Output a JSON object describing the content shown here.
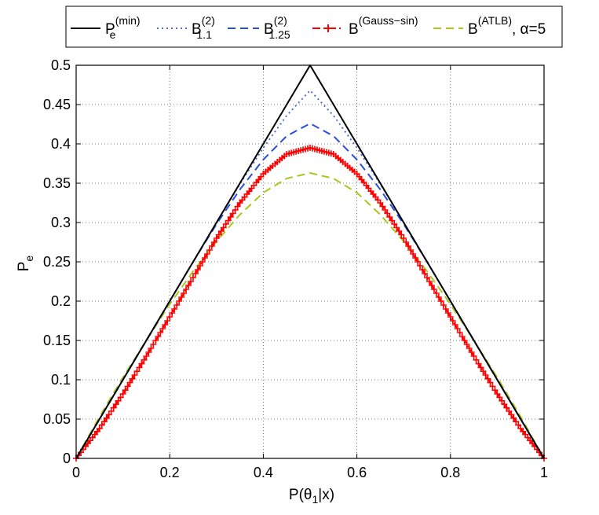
{
  "chart_data": {
    "type": "line",
    "title": "",
    "xlabel": {
      "base": "P(θ",
      "sub": "1",
      "rest": "|x)"
    },
    "ylabel": {
      "base": "P",
      "sub": "e"
    },
    "xlim": [
      0,
      1
    ],
    "ylim": [
      0,
      0.5
    ],
    "grid": true,
    "legend_position": "top-outside",
    "x_ticks": [
      0,
      0.2,
      0.4,
      0.6,
      0.8,
      1
    ],
    "x_tick_labels": [
      "0",
      "0.2",
      "0.4",
      "0.6",
      "0.8",
      "1"
    ],
    "y_ticks": [
      0,
      0.05,
      0.1,
      0.15,
      0.2,
      0.25,
      0.3,
      0.35,
      0.4,
      0.45,
      0.5
    ],
    "y_tick_labels": [
      "0",
      "0.05",
      "0.1",
      "0.15",
      "0.2",
      "0.25",
      "0.3",
      "0.35",
      "0.4",
      "0.45",
      "0.5"
    ],
    "x": [
      0,
      0.05,
      0.1,
      0.15,
      0.2,
      0.25,
      0.3,
      0.35,
      0.4,
      0.45,
      0.5,
      0.55,
      0.6,
      0.65,
      0.7,
      0.75,
      0.8,
      0.85,
      0.9,
      0.95,
      1
    ],
    "series": [
      {
        "name": "P_e^(min)",
        "legend": {
          "base": "P",
          "sub": "e",
          "sup": "(min)",
          "suffix": ""
        },
        "color": "#000000",
        "style": "solid",
        "marker": "none",
        "values": [
          0,
          0.05,
          0.1,
          0.15,
          0.2,
          0.25,
          0.3,
          0.35,
          0.4,
          0.45,
          0.5,
          0.45,
          0.4,
          0.35,
          0.3,
          0.25,
          0.2,
          0.15,
          0.1,
          0.05,
          0
        ]
      },
      {
        "name": "B_1.1^(2)",
        "legend": {
          "base": "B",
          "sub": "1.1",
          "sup": "(2)",
          "suffix": ""
        },
        "color": "#4a6fd8",
        "style": "dotted",
        "marker": "none",
        "values": [
          0,
          0.05,
          0.1,
          0.15,
          0.2,
          0.25,
          0.3,
          0.349,
          0.395,
          0.436,
          0.468,
          0.436,
          0.395,
          0.349,
          0.3,
          0.25,
          0.2,
          0.15,
          0.1,
          0.05,
          0
        ]
      },
      {
        "name": "B_1.25^(2)",
        "legend": {
          "base": "B",
          "sub": "1.25",
          "sup": "(2)",
          "suffix": ""
        },
        "color": "#2a4fe0",
        "style": "dashed",
        "marker": "none",
        "values": [
          0,
          0.05,
          0.1,
          0.15,
          0.2,
          0.25,
          0.298,
          0.342,
          0.38,
          0.41,
          0.426,
          0.41,
          0.38,
          0.342,
          0.298,
          0.25,
          0.2,
          0.15,
          0.1,
          0.05,
          0
        ]
      },
      {
        "name": "B^(Gauss-sin)",
        "legend": {
          "base": "B",
          "sub": "",
          "sup": "(Gauss−sin)",
          "suffix": ""
        },
        "color": "#ff0000",
        "style": "dashdot",
        "marker": "plus",
        "values": [
          0,
          0.038,
          0.082,
          0.13,
          0.18,
          0.23,
          0.28,
          0.325,
          0.362,
          0.387,
          0.395,
          0.387,
          0.362,
          0.325,
          0.28,
          0.23,
          0.18,
          0.13,
          0.082,
          0.038,
          0
        ]
      },
      {
        "name": "B^(ATLB), α=5",
        "legend": {
          "base": "B",
          "sub": "",
          "sup": "(ATLB)",
          "suffix": ", α=5"
        },
        "color": "#a8c81a",
        "style": "dashed",
        "marker": "none",
        "values": [
          0,
          0.053,
          0.103,
          0.15,
          0.196,
          0.238,
          0.276,
          0.31,
          0.338,
          0.356,
          0.363,
          0.356,
          0.338,
          0.31,
          0.276,
          0.238,
          0.196,
          0.15,
          0.103,
          0.053,
          0
        ]
      }
    ]
  }
}
